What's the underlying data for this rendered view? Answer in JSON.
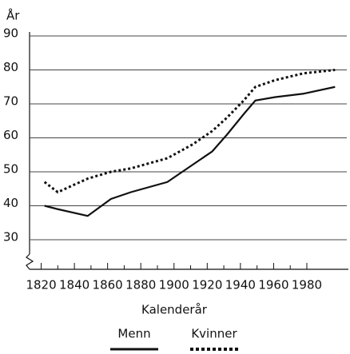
{
  "chart_data": {
    "type": "line",
    "y_label": "År",
    "x_label": "Kalenderår",
    "x": [
      1822,
      1830,
      1848,
      1862,
      1874,
      1896,
      1911,
      1923,
      1932,
      1942,
      1949,
      1961,
      1978,
      1997
    ],
    "series": [
      {
        "name": "Menn",
        "color": "#111111",
        "style": "solid",
        "values": [
          40,
          39,
          37,
          42,
          44,
          47,
          52,
          56,
          61,
          67,
          71,
          72,
          73,
          75
        ]
      },
      {
        "name": "Kvinner",
        "color": "#111111",
        "style": "dashed",
        "values": [
          47,
          44,
          48,
          50,
          51,
          54,
          58,
          62,
          66,
          71,
          75,
          77,
          79,
          80
        ]
      }
    ],
    "xlim": [
      1813,
      2006
    ],
    "xticks": [
      1820,
      1840,
      1860,
      1880,
      1900,
      1920,
      1940,
      1960,
      1980
    ],
    "ylim": [
      30,
      90
    ],
    "yticks": [
      30,
      40,
      50,
      60,
      70,
      80,
      90
    ],
    "grid": true
  }
}
